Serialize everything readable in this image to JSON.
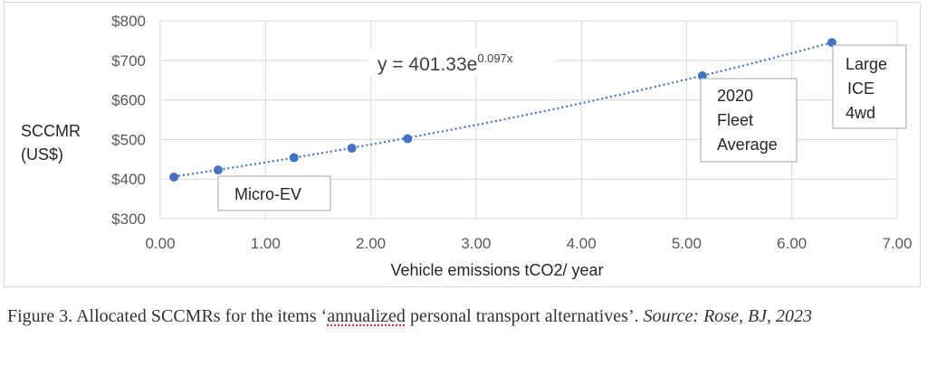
{
  "chart_data": {
    "type": "scatter",
    "title": "",
    "xlabel": "Vehicle emissions tCO2/ year",
    "ylabel": "SCCMR (US$)",
    "xlim": [
      0,
      7
    ],
    "ylim": [
      300,
      800
    ],
    "x_ticks": [
      "0.00",
      "1.00",
      "2.00",
      "3.00",
      "4.00",
      "5.00",
      "6.00",
      "7.00"
    ],
    "y_ticks": [
      "$300",
      "$400",
      "$500",
      "$600",
      "$700",
      "$800"
    ],
    "grid": true,
    "marker_color": "#4472c4",
    "series": [
      {
        "x": [
          0.13,
          0.55,
          1.27,
          1.82,
          2.35,
          5.15,
          6.38
        ],
        "y": [
          405,
          423,
          454,
          478,
          502,
          661,
          745
        ]
      }
    ],
    "trendline": {
      "type": "exponential",
      "style": "dotted",
      "a": 401.33,
      "b": 0.097,
      "equation_base": "y = 401.33e",
      "equation_exponent": "0.097x"
    },
    "annotations": [
      {
        "lines": [
          "Micro-EV"
        ]
      },
      {
        "lines": [
          "2020",
          "Fleet",
          "Average"
        ]
      },
      {
        "lines": [
          "Large",
          "ICE",
          "4wd"
        ]
      }
    ]
  },
  "caption": {
    "prefix": "Figure 3. Allocated SCCMRs for the items ‘",
    "underlined": "annualized",
    "middle": " personal transport alternatives’. ",
    "source": "Source: Rose, BJ, 2023"
  }
}
